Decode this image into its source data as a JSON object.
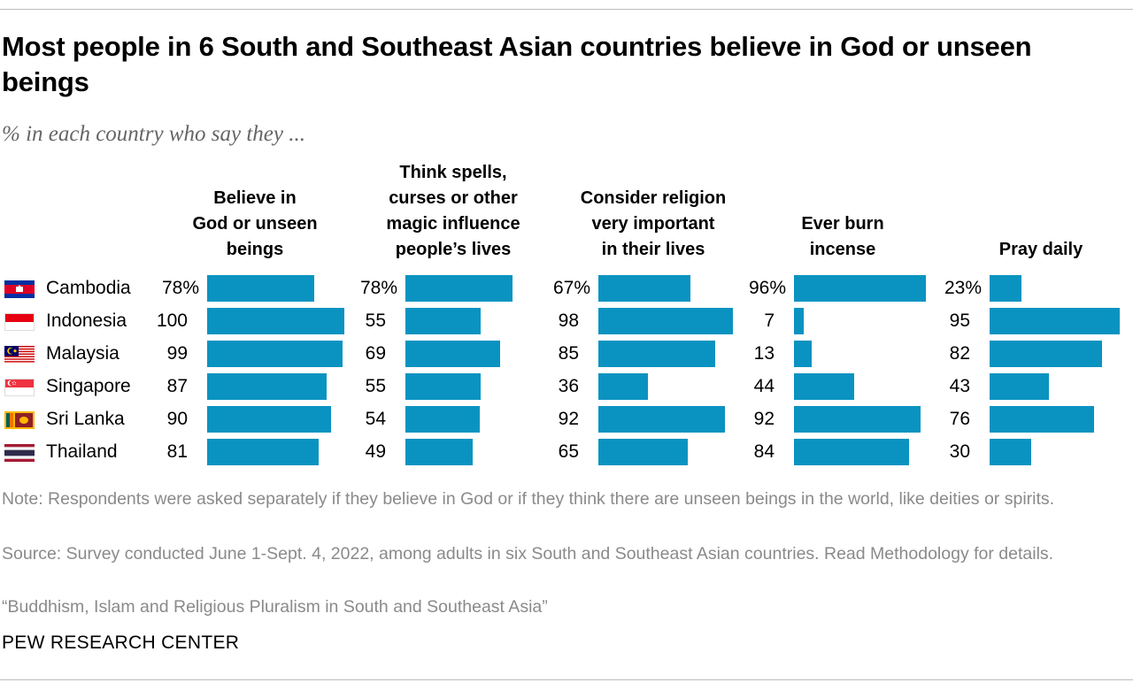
{
  "title": "Most people in 6 South and Southeast Asian countries believe in God or unseen beings",
  "subtitle": "% in each country who say they ...",
  "chart_data": {
    "type": "bar",
    "bar_color": "#0a93c1",
    "categories": [
      "Cambodia",
      "Indonesia",
      "Malaysia",
      "Singapore",
      "Sri Lanka",
      "Thailand"
    ],
    "series": [
      {
        "name": "Believe in\nGod or unseen\nbeings",
        "values": [
          78,
          100,
          99,
          87,
          90,
          81
        ]
      },
      {
        "name": "Think spells,\ncurses or other\nmagic influence\npeople’s lives",
        "values": [
          78,
          55,
          69,
          55,
          54,
          49
        ]
      },
      {
        "name": "Consider religion\nvery important\nin their lives",
        "values": [
          67,
          98,
          85,
          36,
          92,
          65
        ]
      },
      {
        "name": "Ever burn\nincense",
        "values": [
          96,
          7,
          13,
          44,
          92,
          84
        ]
      },
      {
        "name": "Pray daily",
        "values": [
          23,
          95,
          82,
          43,
          76,
          30
        ]
      }
    ],
    "value_labels": [
      [
        "78%",
        "100",
        "99",
        "87",
        "90",
        "81"
      ],
      [
        "78%",
        "55",
        "69",
        "55",
        "54",
        "49"
      ],
      [
        "67%",
        "98",
        "85",
        "36",
        "92",
        "65"
      ],
      [
        "96%",
        "7",
        "13",
        "44",
        "92",
        "84"
      ],
      [
        "23%",
        "95",
        "82",
        "43",
        "76",
        "30"
      ]
    ],
    "xlim": [
      0,
      100
    ],
    "grid": false
  },
  "flags": [
    "cambodia-flag-icon",
    "indonesia-flag-icon",
    "malaysia-flag-icon",
    "singapore-flag-icon",
    "sri-lanka-flag-icon",
    "thailand-flag-icon"
  ],
  "notes": {
    "note": "Note: Respondents were asked separately if they believe in God or if they think there are unseen beings in the world, like deities or spirits.",
    "source": "Source: Survey conducted June 1-Sept. 4, 2022, among adults in six South and Southeast Asian countries. Read Methodology for details.",
    "report": "“Buddhism, Islam and Religious Pluralism in South and Southeast Asia”"
  },
  "footer": "PEW RESEARCH CENTER"
}
